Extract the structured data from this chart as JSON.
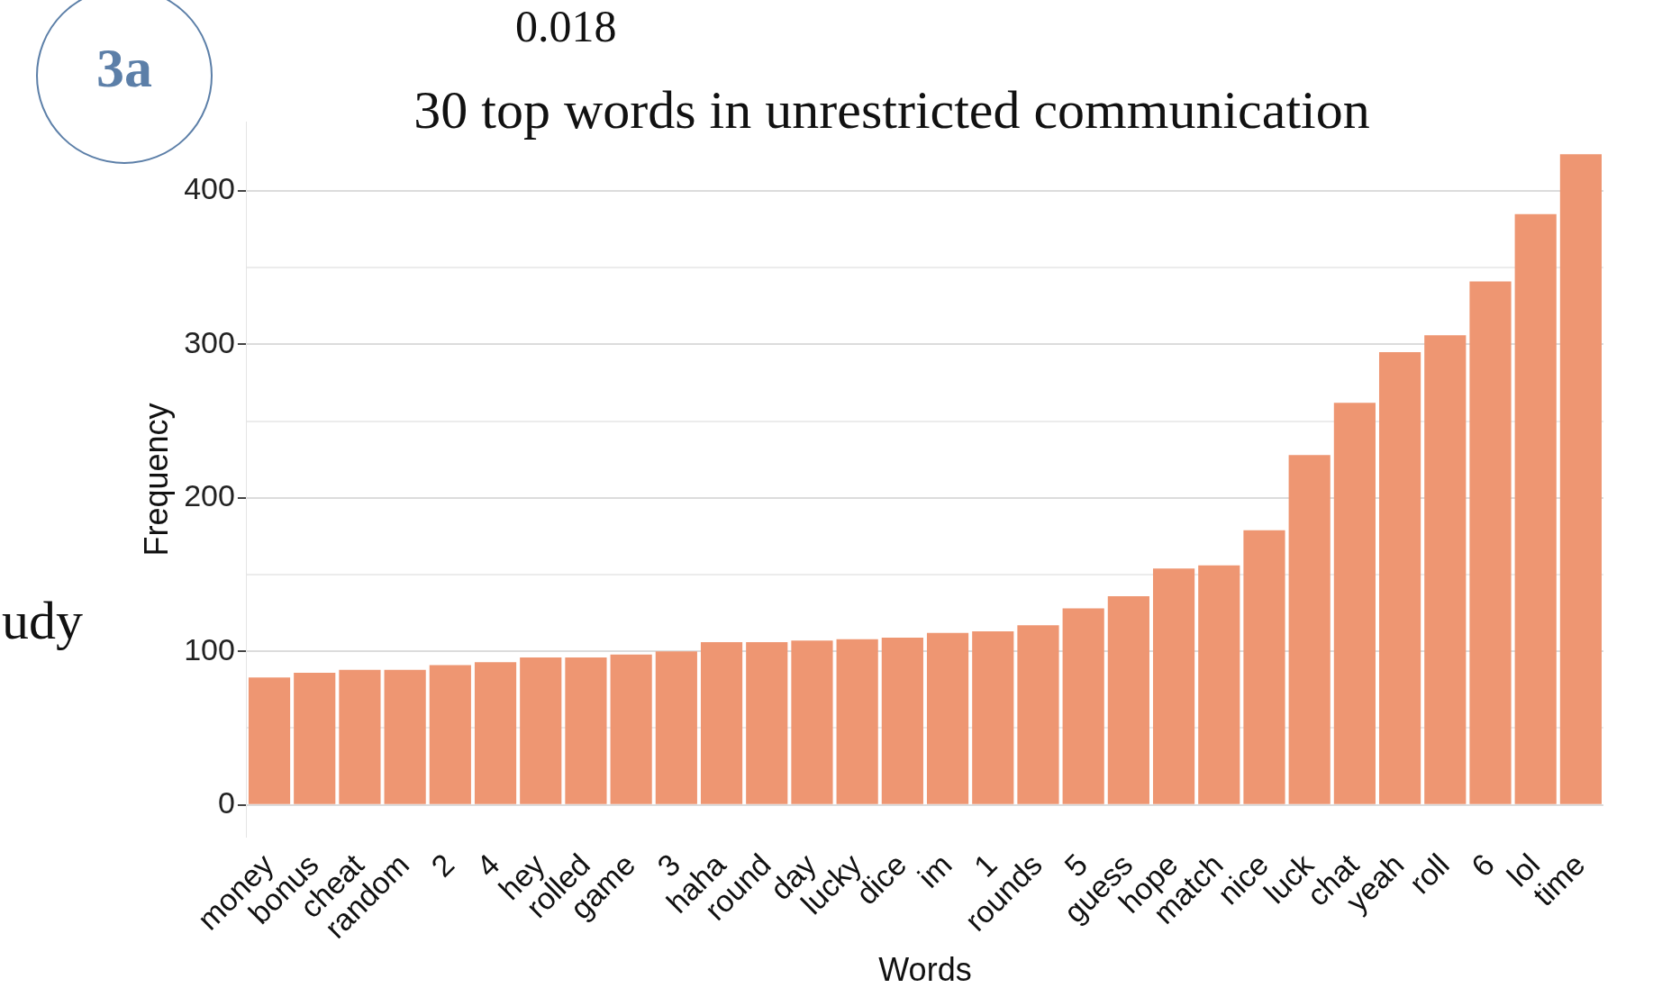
{
  "chart_data": {
    "type": "bar",
    "title": "30 top words in unrestricted communication",
    "xlabel": "Words",
    "ylabel": "Frequency",
    "categories": [
      "money",
      "bonus",
      "cheat",
      "random",
      "2",
      "4",
      "hey",
      "rolled",
      "game",
      "3",
      "haha",
      "round",
      "day",
      "lucky",
      "dice",
      "im",
      "1",
      "rounds",
      "5",
      "guess",
      "hope",
      "match",
      "nice",
      "luck",
      "chat",
      "yeah",
      "roll",
      "6",
      "lol",
      "time"
    ],
    "values": [
      83,
      86,
      88,
      88,
      91,
      93,
      96,
      96,
      98,
      100,
      106,
      106,
      107,
      108,
      109,
      112,
      113,
      117,
      128,
      136,
      154,
      156,
      179,
      228,
      262,
      295,
      306,
      341,
      385,
      424
    ],
    "color": "#ee9672",
    "ylim": [
      -21,
      445
    ],
    "yticks": [
      0,
      {
        "value": 50,
        "label": null
      },
      100,
      {
        "value": 150,
        "label": null
      },
      200,
      {
        "value": 250,
        "label": null
      },
      300,
      {
        "value": 350,
        "label": null
      },
      400
    ],
    "grid": "y",
    "annotations": [
      "3a",
      "0.018",
      "udy"
    ]
  }
}
